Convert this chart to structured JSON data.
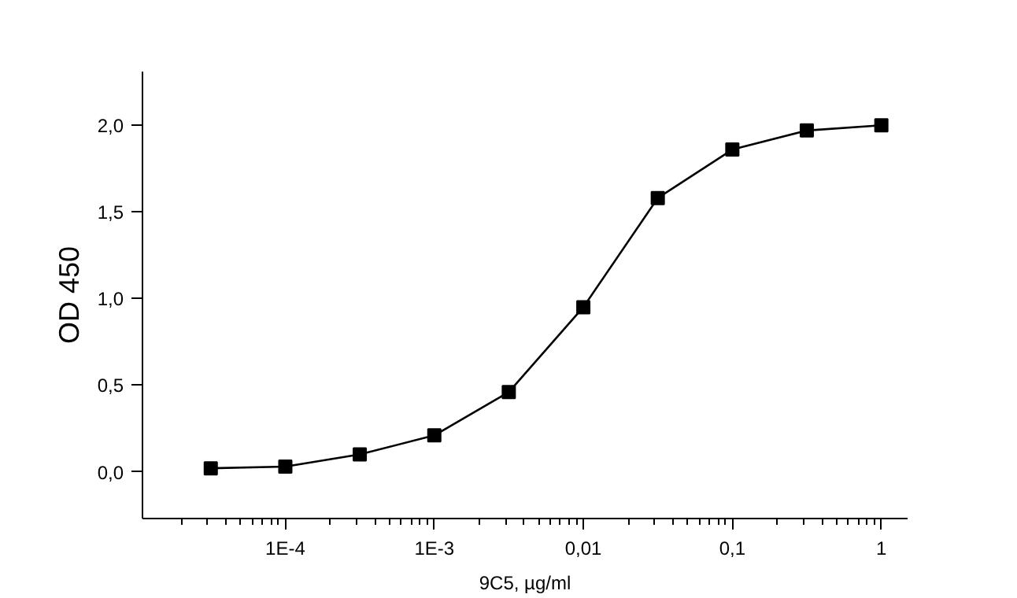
{
  "chart_data": {
    "type": "line",
    "xlabel": "9C5, µg/ml",
    "ylabel": "OD 450",
    "log": "x",
    "x": [
      3.16e-05,
      0.0001,
      0.000316,
      0.001,
      0.00316,
      0.01,
      0.0316,
      0.1,
      0.316,
      1
    ],
    "series": [
      {
        "color": "#000000",
        "values": [
          0.02,
          0.03,
          0.1,
          0.21,
          0.46,
          0.95,
          1.58,
          1.86,
          1.97,
          2.0
        ]
      }
    ],
    "marker": "square",
    "line_style": "solid",
    "grid": false,
    "xlim": [
      1.1e-05,
      1.5
    ],
    "ylim": [
      -0.27,
      2.31
    ],
    "xticks": [
      {
        "value": 0.0001,
        "label": "1E-4"
      },
      {
        "value": 0.001,
        "label": "1E-3"
      },
      {
        "value": 0.01,
        "label": "0,01"
      },
      {
        "value": 0.1,
        "label": "0,1"
      },
      {
        "value": 1,
        "label": "1"
      }
    ],
    "yticks": [
      {
        "value": 0,
        "label": "0,0"
      },
      {
        "value": 0.5,
        "label": "0,5"
      },
      {
        "value": 1,
        "label": "1,0"
      },
      {
        "value": 1.5,
        "label": "1,5"
      },
      {
        "value": 2,
        "label": "2,0"
      }
    ]
  }
}
